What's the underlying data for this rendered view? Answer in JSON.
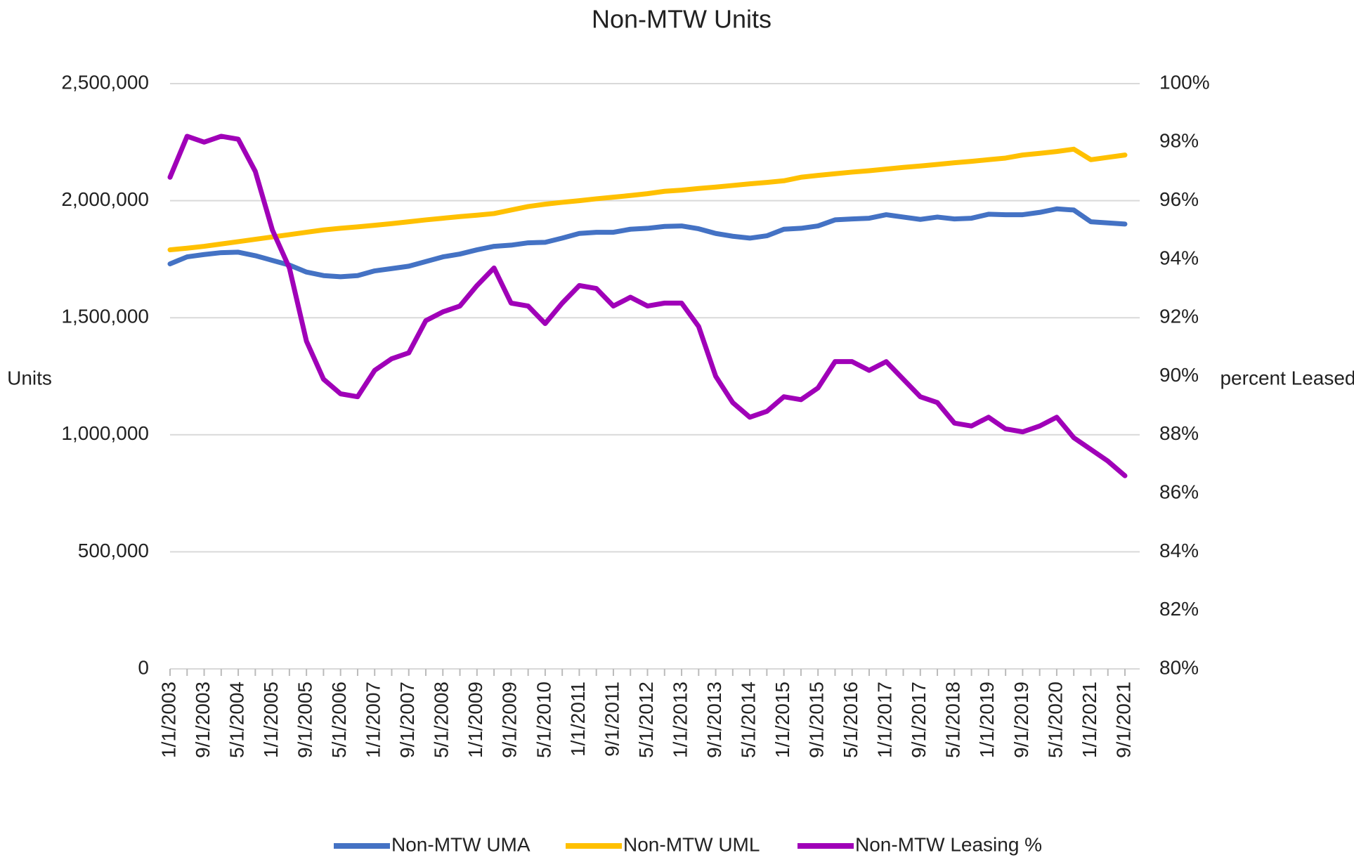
{
  "chart_data": {
    "type": "line",
    "title": "Non-MTW Units",
    "y_label": "Units",
    "y2_label": "percent Leased",
    "categories": [
      "1/1/2003",
      null,
      "9/1/2003",
      null,
      "5/1/2004",
      null,
      "1/1/2005",
      null,
      "9/1/2005",
      null,
      "5/1/2006",
      null,
      "1/1/2007",
      null,
      "9/1/2007",
      null,
      "5/1/2008",
      null,
      "1/1/2009",
      null,
      "9/1/2009",
      null,
      "5/1/2010",
      null,
      "1/1/2011",
      null,
      "9/1/2011",
      null,
      "5/1/2012",
      null,
      "1/1/2013",
      null,
      "9/1/2013",
      null,
      "5/1/2014",
      null,
      "1/1/2015",
      null,
      "9/1/2015",
      null,
      "5/1/2016",
      null,
      "1/1/2017",
      null,
      "9/1/2017",
      null,
      "5/1/2018",
      null,
      "1/1/2019",
      null,
      "9/1/2019",
      null,
      "5/1/2020",
      null,
      "1/1/2021",
      null,
      "9/1/2021"
    ],
    "series": [
      {
        "name": "Non-MTW UMA",
        "color": "#4472c4",
        "axis": "y",
        "values": [
          1730000,
          1760000,
          1770000,
          1778000,
          1780000,
          1765000,
          1745000,
          1725000,
          1695000,
          1680000,
          1675000,
          1680000,
          1700000,
          1710000,
          1720000,
          1740000,
          1760000,
          1772000,
          1790000,
          1805000,
          1810000,
          1820000,
          1822000,
          1840000,
          1860000,
          1865000,
          1865000,
          1878000,
          1882000,
          1890000,
          1892000,
          1880000,
          1860000,
          1848000,
          1840000,
          1850000,
          1878000,
          1882000,
          1892000,
          1918000,
          1922000,
          1925000,
          1940000,
          1930000,
          1920000,
          1930000,
          1922000,
          1925000,
          1942000,
          1940000,
          1940000,
          1950000,
          1965000,
          1960000,
          1910000,
          1905000,
          1900000
        ]
      },
      {
        "name": "Non-MTW UML",
        "color": "#ffc000",
        "axis": "y",
        "values": [
          1790000,
          1797000,
          1805000,
          1815000,
          1825000,
          1835000,
          1845000,
          1855000,
          1865000,
          1875000,
          1882000,
          1888000,
          1895000,
          1902000,
          1910000,
          1918000,
          1925000,
          1932000,
          1938000,
          1945000,
          1960000,
          1975000,
          1985000,
          1993000,
          2000000,
          2008000,
          2015000,
          2022000,
          2030000,
          2040000,
          2045000,
          2052000,
          2058000,
          2065000,
          2072000,
          2078000,
          2085000,
          2100000,
          2108000,
          2115000,
          2122000,
          2128000,
          2135000,
          2142000,
          2148000,
          2155000,
          2162000,
          2168000,
          2175000,
          2182000,
          2195000,
          2202000,
          2210000,
          2220000,
          2175000,
          2185000,
          2195000
        ]
      },
      {
        "name": "Non-MTW Leasing %",
        "color": "#a000b8",
        "axis": "y2",
        "values": [
          96.8,
          98.2,
          98.0,
          98.2,
          98.1,
          97.0,
          95.0,
          93.7,
          91.2,
          89.9,
          89.4,
          89.3,
          90.2,
          90.6,
          90.8,
          91.9,
          92.2,
          92.4,
          93.1,
          93.7,
          92.5,
          92.4,
          91.8,
          92.5,
          93.1,
          93.0,
          92.4,
          92.7,
          92.4,
          92.5,
          92.5,
          91.7,
          90.0,
          89.1,
          88.6,
          88.8,
          89.3,
          89.2,
          89.6,
          90.5,
          90.5,
          90.2,
          90.5,
          89.9,
          89.3,
          89.1,
          88.4,
          88.3,
          88.6,
          88.2,
          88.1,
          88.3,
          88.6,
          87.9,
          87.5,
          87.1,
          86.6
        ]
      }
    ],
    "ylim": [
      0,
      2500000
    ],
    "yticks": [
      0,
      {
        "value": 500000,
        "label": "500,000"
      },
      {
        "value": 1000000,
        "label": "1,000,000"
      },
      {
        "value": 1500000,
        "label": "1,500,000"
      },
      {
        "value": 2000000,
        "label": "2,000,000"
      },
      {
        "value": 2500000,
        "label": "2,500,000"
      }
    ],
    "y2lim": [
      80,
      100
    ],
    "y2ticks": [
      {
        "value": 80,
        "label": "80%"
      },
      {
        "value": 82,
        "label": "82%"
      },
      {
        "value": 84,
        "label": "84%"
      },
      {
        "value": 86,
        "label": "86%"
      },
      {
        "value": 88,
        "label": "88%"
      },
      {
        "value": 90,
        "label": "90%"
      },
      {
        "value": 92,
        "label": "92%"
      },
      {
        "value": 94,
        "label": "94%"
      },
      {
        "value": 96,
        "label": "96%"
      },
      {
        "value": 98,
        "label": "98%"
      },
      {
        "value": 100,
        "label": "100%"
      }
    ],
    "grid": true,
    "legend": "bottom"
  }
}
